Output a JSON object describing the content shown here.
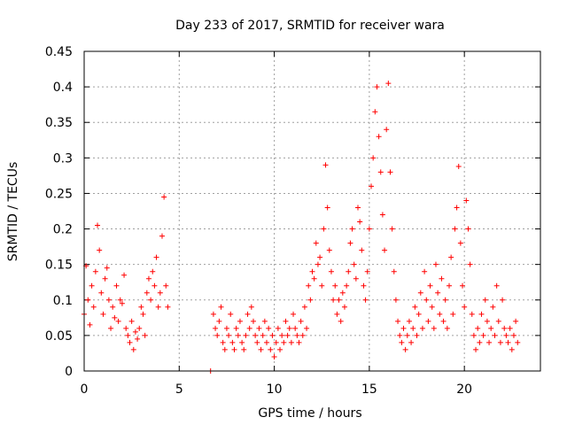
{
  "chart_data": {
    "type": "scatter",
    "title": "Day 233 of 2017, SRMTID for receiver wara",
    "xlabel": "GPS time / hours",
    "ylabel": "SRMTID / TECUs",
    "xlim": [
      0,
      24
    ],
    "ylim": [
      0,
      0.45
    ],
    "grid": true,
    "x_ticks": [
      0,
      5,
      10,
      15,
      20
    ],
    "x_tick_labels": [
      "0",
      "5",
      "10",
      "15",
      "20"
    ],
    "y_ticks": [
      0,
      0.05,
      0.1,
      0.15,
      0.2,
      0.25,
      0.3,
      0.35,
      0.4,
      0.45
    ],
    "y_tick_labels": [
      "0",
      "0.05",
      "0.1",
      "0.15",
      "0.2",
      "0.25",
      "0.3",
      "0.35",
      "0.4",
      "0.45"
    ],
    "marker": "+",
    "series": [
      {
        "name": "SRMTID",
        "color": "#ff0000",
        "points": [
          [
            0.0,
            0.08
          ],
          [
            0.1,
            0.148
          ],
          [
            0.2,
            0.1
          ],
          [
            0.3,
            0.065
          ],
          [
            0.4,
            0.12
          ],
          [
            0.5,
            0.09
          ],
          [
            0.6,
            0.14
          ],
          [
            0.7,
            0.205
          ],
          [
            0.8,
            0.17
          ],
          [
            0.9,
            0.11
          ],
          [
            1.0,
            0.08
          ],
          [
            1.1,
            0.13
          ],
          [
            1.2,
            0.145
          ],
          [
            1.3,
            0.1
          ],
          [
            1.4,
            0.06
          ],
          [
            1.5,
            0.09
          ],
          [
            1.6,
            0.075
          ],
          [
            1.7,
            0.12
          ],
          [
            1.8,
            0.07
          ],
          [
            1.9,
            0.1
          ],
          [
            2.0,
            0.095
          ],
          [
            2.1,
            0.135
          ],
          [
            2.2,
            0.06
          ],
          [
            2.3,
            0.05
          ],
          [
            2.4,
            0.04
          ],
          [
            2.5,
            0.07
          ],
          [
            2.6,
            0.03
          ],
          [
            2.7,
            0.055
          ],
          [
            2.8,
            0.045
          ],
          [
            2.9,
            0.06
          ],
          [
            3.0,
            0.09
          ],
          [
            3.1,
            0.08
          ],
          [
            3.2,
            0.05
          ],
          [
            3.3,
            0.11
          ],
          [
            3.4,
            0.13
          ],
          [
            3.5,
            0.1
          ],
          [
            3.6,
            0.14
          ],
          [
            3.7,
            0.12
          ],
          [
            3.8,
            0.16
          ],
          [
            3.9,
            0.09
          ],
          [
            4.0,
            0.11
          ],
          [
            4.1,
            0.19
          ],
          [
            4.2,
            0.245
          ],
          [
            4.3,
            0.12
          ],
          [
            4.4,
            0.09
          ],
          [
            6.65,
            0.0
          ],
          [
            6.8,
            0.08
          ],
          [
            6.9,
            0.06
          ],
          [
            7.0,
            0.05
          ],
          [
            7.1,
            0.07
          ],
          [
            7.2,
            0.09
          ],
          [
            7.3,
            0.04
          ],
          [
            7.4,
            0.03
          ],
          [
            7.5,
            0.06
          ],
          [
            7.6,
            0.05
          ],
          [
            7.7,
            0.08
          ],
          [
            7.8,
            0.04
          ],
          [
            7.9,
            0.03
          ],
          [
            8.0,
            0.06
          ],
          [
            8.1,
            0.05
          ],
          [
            8.2,
            0.07
          ],
          [
            8.3,
            0.04
          ],
          [
            8.4,
            0.03
          ],
          [
            8.5,
            0.05
          ],
          [
            8.6,
            0.08
          ],
          [
            8.7,
            0.06
          ],
          [
            8.8,
            0.09
          ],
          [
            8.9,
            0.07
          ],
          [
            9.0,
            0.05
          ],
          [
            9.1,
            0.04
          ],
          [
            9.2,
            0.06
          ],
          [
            9.3,
            0.03
          ],
          [
            9.4,
            0.05
          ],
          [
            9.5,
            0.07
          ],
          [
            9.6,
            0.04
          ],
          [
            9.7,
            0.06
          ],
          [
            9.8,
            0.03
          ],
          [
            9.9,
            0.05
          ],
          [
            10.0,
            0.02
          ],
          [
            10.1,
            0.04
          ],
          [
            10.2,
            0.06
          ],
          [
            10.3,
            0.03
          ],
          [
            10.4,
            0.05
          ],
          [
            10.5,
            0.04
          ],
          [
            10.6,
            0.07
          ],
          [
            10.7,
            0.05
          ],
          [
            10.8,
            0.06
          ],
          [
            10.9,
            0.04
          ],
          [
            11.0,
            0.08
          ],
          [
            11.1,
            0.06
          ],
          [
            11.2,
            0.05
          ],
          [
            11.3,
            0.04
          ],
          [
            11.4,
            0.07
          ],
          [
            11.5,
            0.05
          ],
          [
            11.6,
            0.09
          ],
          [
            11.7,
            0.06
          ],
          [
            11.8,
            0.12
          ],
          [
            11.9,
            0.1
          ],
          [
            12.0,
            0.14
          ],
          [
            12.1,
            0.13
          ],
          [
            12.2,
            0.18
          ],
          [
            12.3,
            0.15
          ],
          [
            12.4,
            0.16
          ],
          [
            12.5,
            0.12
          ],
          [
            12.6,
            0.2
          ],
          [
            12.7,
            0.29
          ],
          [
            12.8,
            0.23
          ],
          [
            12.9,
            0.17
          ],
          [
            13.0,
            0.14
          ],
          [
            13.1,
            0.1
          ],
          [
            13.2,
            0.12
          ],
          [
            13.3,
            0.08
          ],
          [
            13.4,
            0.1
          ],
          [
            13.5,
            0.07
          ],
          [
            13.6,
            0.11
          ],
          [
            13.7,
            0.09
          ],
          [
            13.8,
            0.12
          ],
          [
            13.9,
            0.14
          ],
          [
            14.0,
            0.18
          ],
          [
            14.1,
            0.2
          ],
          [
            14.2,
            0.15
          ],
          [
            14.3,
            0.13
          ],
          [
            14.4,
            0.23
          ],
          [
            14.5,
            0.21
          ],
          [
            14.6,
            0.17
          ],
          [
            14.7,
            0.12
          ],
          [
            14.8,
            0.1
          ],
          [
            14.9,
            0.14
          ],
          [
            15.0,
            0.2
          ],
          [
            15.1,
            0.26
          ],
          [
            15.2,
            0.3
          ],
          [
            15.3,
            0.365
          ],
          [
            15.4,
            0.4
          ],
          [
            15.5,
            0.33
          ],
          [
            15.6,
            0.28
          ],
          [
            15.7,
            0.22
          ],
          [
            15.8,
            0.17
          ],
          [
            15.9,
            0.34
          ],
          [
            16.0,
            0.405
          ],
          [
            16.1,
            0.28
          ],
          [
            16.2,
            0.2
          ],
          [
            16.3,
            0.14
          ],
          [
            16.4,
            0.1
          ],
          [
            16.5,
            0.07
          ],
          [
            16.6,
            0.05
          ],
          [
            16.7,
            0.04
          ],
          [
            16.8,
            0.06
          ],
          [
            16.9,
            0.03
          ],
          [
            17.0,
            0.05
          ],
          [
            17.1,
            0.07
          ],
          [
            17.2,
            0.04
          ],
          [
            17.3,
            0.06
          ],
          [
            17.4,
            0.09
          ],
          [
            17.5,
            0.05
          ],
          [
            17.6,
            0.08
          ],
          [
            17.7,
            0.11
          ],
          [
            17.8,
            0.06
          ],
          [
            17.9,
            0.14
          ],
          [
            18.0,
            0.1
          ],
          [
            18.1,
            0.07
          ],
          [
            18.2,
            0.12
          ],
          [
            18.3,
            0.09
          ],
          [
            18.4,
            0.06
          ],
          [
            18.5,
            0.15
          ],
          [
            18.6,
            0.11
          ],
          [
            18.7,
            0.08
          ],
          [
            18.8,
            0.13
          ],
          [
            18.9,
            0.07
          ],
          [
            19.0,
            0.1
          ],
          [
            19.1,
            0.06
          ],
          [
            19.2,
            0.12
          ],
          [
            19.3,
            0.16
          ],
          [
            19.4,
            0.08
          ],
          [
            19.5,
            0.2
          ],
          [
            19.6,
            0.23
          ],
          [
            19.7,
            0.288
          ],
          [
            19.8,
            0.18
          ],
          [
            19.9,
            0.12
          ],
          [
            20.0,
            0.09
          ],
          [
            20.1,
            0.24
          ],
          [
            20.2,
            0.2
          ],
          [
            20.3,
            0.15
          ],
          [
            20.4,
            0.08
          ],
          [
            20.5,
            0.05
          ],
          [
            20.6,
            0.03
          ],
          [
            20.7,
            0.06
          ],
          [
            20.8,
            0.04
          ],
          [
            20.9,
            0.08
          ],
          [
            21.0,
            0.05
          ],
          [
            21.1,
            0.1
          ],
          [
            21.2,
            0.07
          ],
          [
            21.3,
            0.04
          ],
          [
            21.4,
            0.06
          ],
          [
            21.5,
            0.09
          ],
          [
            21.6,
            0.05
          ],
          [
            21.7,
            0.12
          ],
          [
            21.8,
            0.07
          ],
          [
            21.9,
            0.04
          ],
          [
            22.0,
            0.1
          ],
          [
            22.1,
            0.06
          ],
          [
            22.2,
            0.05
          ],
          [
            22.3,
            0.04
          ],
          [
            22.4,
            0.06
          ],
          [
            22.5,
            0.03
          ],
          [
            22.6,
            0.05
          ],
          [
            22.7,
            0.07
          ],
          [
            22.8,
            0.04
          ]
        ]
      }
    ]
  }
}
